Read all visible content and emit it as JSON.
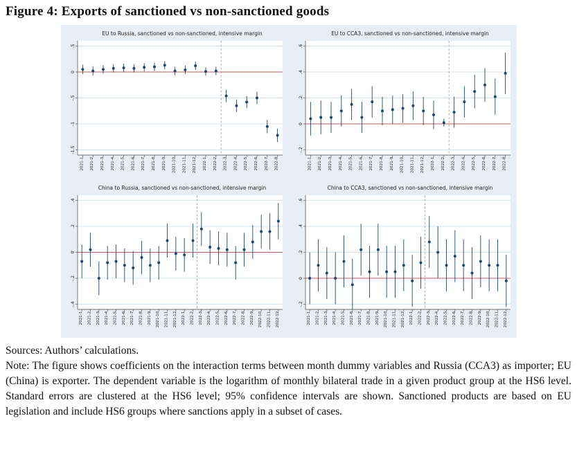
{
  "page": {
    "title": "Figure 4: Exports of sanctioned vs non-sanctioned goods",
    "sources": "Sources: Authors’ calculations.",
    "note": "Note: The figure shows coefficients on the interaction terms between month dummy variables and Russia (CCA3) as importer; EU (China) is exporter. The dependent variable is the logarithm of monthly bilateral trade in a given product group at the HS6 level. Standard errors are clustered at the HS6 level; 95% confidence intervals are shown. Sanctioned products are based on EU legislation and include HS6 groups where sanctions apply in a subset of cases."
  },
  "colors": {
    "figure_bg": "#e8eef5",
    "plot_bg": "#ffffff",
    "grid": "#d3e3f0",
    "marker": "#1a476f",
    "zero_line": "#c85b5b",
    "dashed": "#9b9b9b",
    "axis": "#444444"
  },
  "chart_data": [
    {
      "type": "scatter",
      "title": "EU to Russia, sanctioned vs non-sanctioned, intensive margin",
      "x": [
        "2021-1",
        "2021-2",
        "2021-3",
        "2021-4",
        "2021-5",
        "2021-6",
        "2021-7",
        "2021-8",
        "2021-9",
        "2021-10",
        "2021-11",
        "2021-12",
        "2022-1",
        "2022-2",
        "2022-3",
        "2022-4",
        "2022-5",
        "2022-6",
        "2022-7",
        "2022-8"
      ],
      "est": [
        0.05,
        0.02,
        0.05,
        0.07,
        0.08,
        0.07,
        0.09,
        0.1,
        0.13,
        0.02,
        0.04,
        0.12,
        0.01,
        0.02,
        -0.46,
        -0.65,
        -0.58,
        -0.5,
        -1.05,
        -1.22
      ],
      "ci_low": [
        -0.04,
        -0.07,
        -0.03,
        -0.01,
        0.0,
        -0.01,
        0.01,
        0.02,
        0.05,
        -0.06,
        -0.04,
        0.04,
        -0.07,
        -0.06,
        -0.58,
        -0.77,
        -0.7,
        -0.62,
        -1.18,
        -1.35
      ],
      "ci_high": [
        0.14,
        0.11,
        0.13,
        0.15,
        0.16,
        0.15,
        0.17,
        0.18,
        0.21,
        0.1,
        0.12,
        0.2,
        0.09,
        0.1,
        -0.34,
        -0.53,
        -0.46,
        -0.38,
        -0.92,
        -1.09
      ],
      "ylim": [
        -1.5,
        0.5
      ],
      "yticks": [
        0.5,
        0,
        -0.5,
        -1,
        -1.5
      ],
      "ytick_labels": [
        ".5",
        "0",
        "-.5",
        "-1",
        "-1.5"
      ],
      "hline_y": 0,
      "vline_index": 13.5
    },
    {
      "type": "scatter",
      "title": "EU to CCA3, sanctioned vs non-sanctioned, intensive margin",
      "x": [
        "2021-1",
        "2021-2",
        "2021-3",
        "2021-4",
        "2021-5",
        "2021-6",
        "2021-7",
        "2021-8",
        "2021-9",
        "2021-10",
        "2021-11",
        "2021-12",
        "2022-1",
        "2022-2",
        "2022-3",
        "2022-4",
        "2022-5",
        "2022-6",
        "2022-7",
        "2022-8"
      ],
      "est": [
        0.04,
        0.05,
        0.05,
        0.1,
        0.15,
        0.05,
        0.17,
        0.1,
        0.11,
        0.12,
        0.14,
        0.1,
        0.07,
        0.01,
        0.09,
        0.17,
        0.25,
        0.3,
        0.21,
        0.39
      ],
      "ci_low": [
        -0.09,
        -0.08,
        -0.07,
        -0.02,
        0.03,
        -0.07,
        0.05,
        -0.01,
        0.0,
        0.01,
        0.03,
        -0.01,
        -0.04,
        -0.02,
        -0.03,
        0.05,
        0.12,
        0.17,
        0.07,
        0.23
      ],
      "ci_high": [
        0.17,
        0.18,
        0.17,
        0.22,
        0.27,
        0.17,
        0.29,
        0.21,
        0.22,
        0.23,
        0.25,
        0.21,
        0.18,
        0.04,
        0.21,
        0.29,
        0.38,
        0.43,
        0.35,
        0.55
      ],
      "ylim": [
        -0.2,
        0.6
      ],
      "yticks": [
        0.6,
        0.4,
        0.2,
        0,
        -0.2
      ],
      "ytick_labels": [
        ".6",
        ".4",
        ".2",
        "0",
        "-.2"
      ],
      "hline_y": 0,
      "vline_index": 13.5
    },
    {
      "type": "scatter",
      "title": "China to Russia, sanctioned vs non-sanctioned, intensive margin",
      "x": [
        "2021-1",
        "2021-2",
        "2021-3",
        "2021-4",
        "2021-5",
        "2021-6",
        "2021-7",
        "2021-8",
        "2021-9",
        "2021-10",
        "2021-11",
        "2021-12",
        "2022-1",
        "2022-2",
        "2022-3",
        "2022-4",
        "2022-5",
        "2022-6",
        "2022-7",
        "2022-8",
        "2022-9",
        "2022-10",
        "2022-11",
        "2022-12"
      ],
      "est": [
        -0.07,
        0.02,
        -0.2,
        -0.08,
        -0.07,
        -0.1,
        -0.12,
        -0.04,
        -0.1,
        -0.08,
        0.09,
        -0.01,
        -0.02,
        0.09,
        0.18,
        0.04,
        0.03,
        0.02,
        -0.08,
        0.02,
        0.08,
        0.16,
        0.16,
        0.24
      ],
      "ci_low": [
        -0.2,
        -0.11,
        -0.33,
        -0.21,
        -0.2,
        -0.23,
        -0.25,
        -0.17,
        -0.23,
        -0.21,
        -0.04,
        -0.14,
        -0.15,
        -0.04,
        0.05,
        -0.09,
        -0.1,
        -0.11,
        -0.21,
        -0.11,
        -0.05,
        0.03,
        0.02,
        0.1
      ],
      "ci_high": [
        0.06,
        0.15,
        -0.07,
        0.05,
        0.06,
        0.03,
        0.01,
        0.09,
        0.03,
        0.05,
        0.22,
        0.12,
        0.11,
        0.22,
        0.31,
        0.17,
        0.16,
        0.15,
        0.05,
        0.15,
        0.21,
        0.29,
        0.3,
        0.38
      ],
      "ylim": [
        -0.4,
        0.4
      ],
      "yticks": [
        0.4,
        0.2,
        0,
        -0.2,
        -0.4
      ],
      "ytick_labels": [
        ".4",
        ".2",
        "0",
        "-.2",
        "-.4"
      ],
      "hline_y": 0,
      "vline_index": 13.5
    },
    {
      "type": "scatter",
      "title": "China to CCA3, sanctioned vs non-sanctioned, intensive margin",
      "x": [
        "2021-1",
        "2021-2",
        "2021-3",
        "2021-4",
        "2021-5",
        "2021-6",
        "2021-7",
        "2021-8",
        "2021-9",
        "2021-10",
        "2021-11",
        "2021-12",
        "2022-1",
        "2022-2",
        "2022-3",
        "2022-4",
        "2022-5",
        "2022-6",
        "2022-7",
        "2022-8",
        "2022-9",
        "2022-10",
        "2022-11",
        "2022-12"
      ],
      "est": [
        0.0,
        0.1,
        0.04,
        0.0,
        0.13,
        -0.05,
        0.22,
        0.05,
        0.22,
        0.05,
        0.05,
        0.1,
        -0.02,
        0.12,
        0.28,
        0.2,
        0.1,
        0.17,
        0.1,
        0.04,
        0.13,
        0.1,
        0.1,
        -0.02
      ],
      "ci_low": [
        -0.2,
        -0.1,
        -0.16,
        -0.2,
        -0.07,
        -0.24,
        0.02,
        -0.15,
        0.02,
        -0.15,
        -0.15,
        -0.1,
        -0.22,
        -0.08,
        0.08,
        0.0,
        -0.1,
        -0.03,
        -0.1,
        -0.16,
        -0.07,
        -0.1,
        -0.1,
        -0.22
      ],
      "ci_high": [
        0.2,
        0.3,
        0.24,
        0.2,
        0.33,
        0.15,
        0.42,
        0.25,
        0.42,
        0.25,
        0.25,
        0.3,
        0.18,
        0.32,
        0.48,
        0.4,
        0.3,
        0.37,
        0.3,
        0.24,
        0.33,
        0.3,
        0.3,
        0.18
      ],
      "ylim": [
        -0.2,
        0.6
      ],
      "yticks": [
        0.6,
        0.4,
        0.2,
        0,
        -0.2
      ],
      "ytick_labels": [
        ".6",
        ".4",
        ".2",
        "0",
        "-.2"
      ],
      "hline_y": 0,
      "vline_index": 13.5
    }
  ]
}
